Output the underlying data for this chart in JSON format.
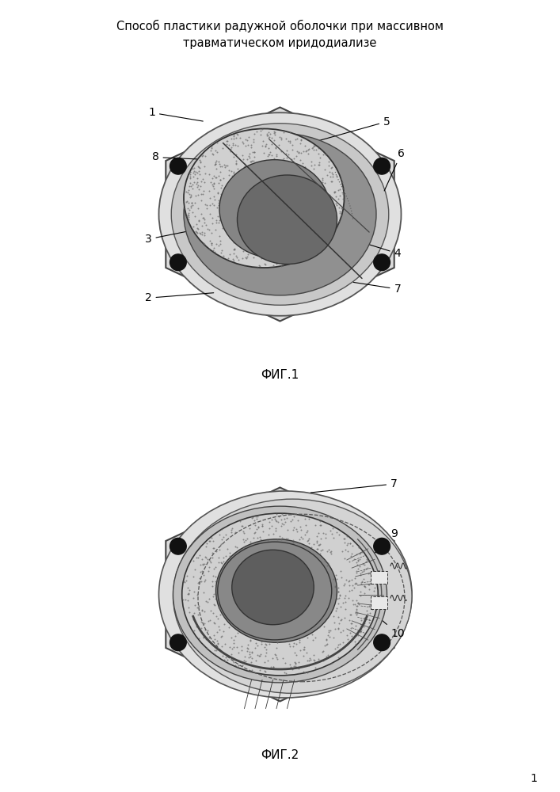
{
  "title": "Способ пластики радужной оболочки при массивном\nтравматическом иридодиализе",
  "title_fontsize": 10.5,
  "fig1_label": "ФИГ.1",
  "fig2_label": "ФИГ.2",
  "page_num": "1",
  "bg_color": "#ffffff",
  "hex_fill": "#dcdcdc",
  "hex_edge": "#444444",
  "sclera_fill": "#e8e8e8",
  "sclera_edge": "#555555",
  "iris_base_fill": "#b4b4b4",
  "iris_texture_fill": "#c8c8c8",
  "iris_dark_fill": "#888888",
  "pupil_fill": "#707070",
  "pupil_dark": "#5a5a5a",
  "dot_fill": "#111111",
  "line_color": "#333333"
}
